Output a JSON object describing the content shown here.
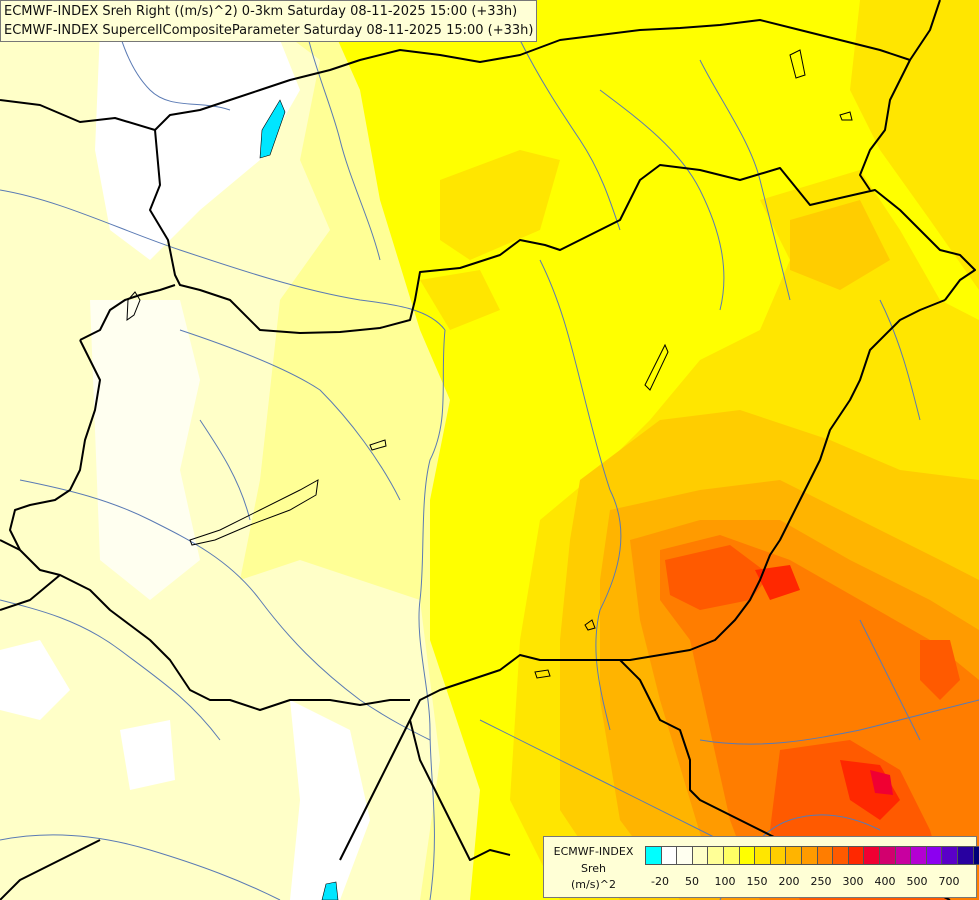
{
  "header": {
    "line1": "ECMWF-INDEX Sreh Right ((m/s)^2) 0-3km Saturday 08-11-2025 15:00 (+33h)",
    "line2": "ECMWF-INDEX SupercellCompositeParameter Saturday 08-11-2025 15:00 (+33h)"
  },
  "legend": {
    "model": "ECMWF-INDEX",
    "variable": "Sreh",
    "unit": "(m/s)^2",
    "colors": [
      "#00ffff",
      "#ffffff",
      "#fffff0",
      "#ffffc8",
      "#ffff96",
      "#ffff64",
      "#ffff00",
      "#ffe600",
      "#ffcd00",
      "#ffb400",
      "#ff9b00",
      "#ff7d00",
      "#ff5a00",
      "#ff2800",
      "#f00032",
      "#d2006e",
      "#c800a0",
      "#b400d2",
      "#8c00f0",
      "#5a00c8",
      "#2800a0",
      "#000078"
    ],
    "ticks": [
      "-20",
      "50",
      "100",
      "150",
      "200",
      "250",
      "300",
      "400",
      "500",
      "700"
    ]
  },
  "colors": {
    "background": "#ffffc8",
    "border": "#000000",
    "river": "#5a7ab4",
    "lake": "#00e6ff"
  }
}
